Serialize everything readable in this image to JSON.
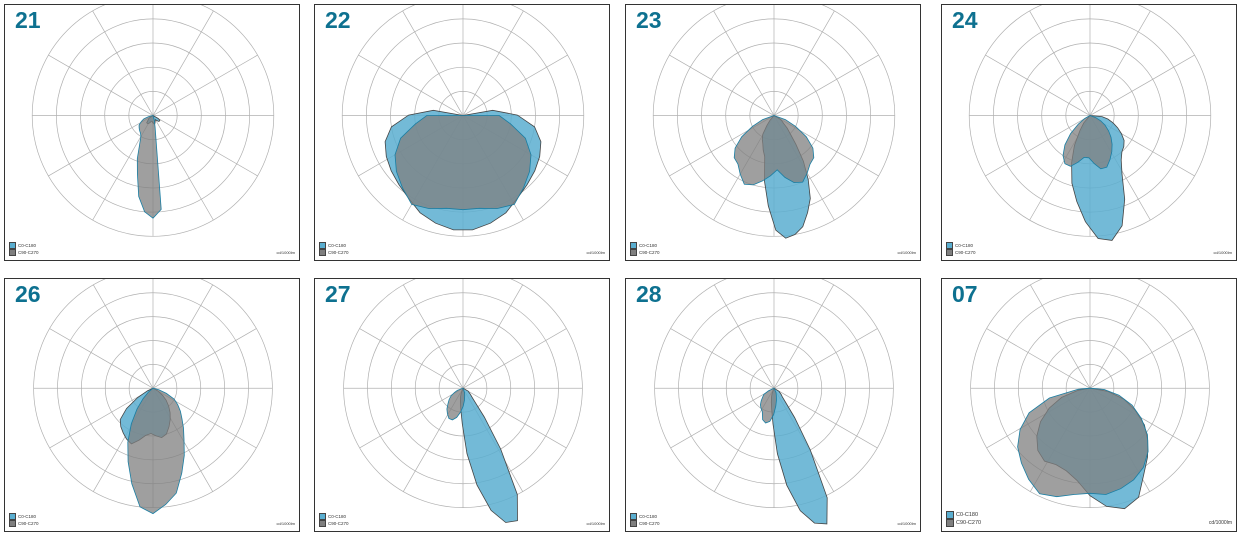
{
  "colors": {
    "c0_c180": "#5aaed0",
    "c90_c270": "#7f7f7f",
    "grid": "#b0b0b0",
    "number": "#0e7190"
  },
  "legend": {
    "c0_c180": "C0-C180",
    "c90_c270": "C90-C270"
  },
  "unit": "cd/1000lm",
  "chart_data": [
    {
      "type": "polar",
      "title": "21",
      "series": [
        {
          "name": "C0-C180",
          "r": [
            0.04,
            0.08,
            0.1,
            0.12,
            0.14,
            0.15,
            0.16,
            0.17,
            0.18,
            0.2,
            0.26,
            0.38,
            0.5,
            0.68,
            0.8,
            0.85,
            0.78,
            0.1,
            0.04
          ]
        },
        {
          "name": "C90-C270",
          "r": [
            0.04,
            0.05,
            0.06,
            0.08,
            0.08,
            0.08,
            0.07,
            0.06,
            0.05,
            0.05,
            0.05,
            0.06,
            0.06,
            0.07,
            0.07,
            0.06,
            0.05,
            0.04,
            0.04,
            0.05,
            0.06,
            0.07,
            0.07,
            0.07,
            0.05
          ]
        }
      ]
    },
    {
      "type": "polar",
      "title": "22",
      "series": [
        {
          "name": "C0-C180",
          "r": [
            0.3,
            0.4,
            0.55,
            0.65,
            0.72,
            0.78,
            0.85,
            0.82,
            0.78,
            0.78,
            0.78,
            0.82,
            0.85,
            0.78,
            0.72,
            0.65,
            0.55,
            0.4,
            0.3
          ]
        },
        {
          "name": "C90-C270",
          "r": [
            0.25,
            0.45,
            0.6,
            0.68,
            0.72,
            0.75,
            0.78,
            0.82,
            0.88,
            0.92,
            0.95,
            0.95,
            0.92,
            0.88,
            0.82,
            0.78,
            0.75,
            0.72,
            0.68,
            0.6,
            0.45,
            0.25
          ]
        }
      ]
    },
    {
      "type": "polar",
      "title": "23",
      "series": [
        {
          "name": "C0-C180",
          "r": [
            0.1,
            0.2,
            0.32,
            0.42,
            0.48,
            0.5,
            0.56,
            0.62,
            0.6,
            0.55,
            0.5,
            0.45,
            0.52,
            0.58,
            0.6,
            0.55,
            0.5,
            0.48,
            0.42,
            0.32,
            0.2,
            0.1
          ]
        },
        {
          "name": "C90-C270",
          "r": [
            0.05,
            0.1,
            0.18,
            0.22,
            0.25,
            0.3,
            0.35,
            0.55,
            0.75,
            0.95,
            1.02,
            1.0,
            0.95,
            0.85,
            0.75,
            0.6,
            0.45,
            0.3,
            0.2,
            0.15,
            0.1,
            0.08,
            0.05
          ]
        }
      ]
    },
    {
      "type": "polar",
      "title": "24",
      "series": [
        {
          "name": "C0-C180",
          "r": [
            0.05,
            0.12,
            0.22,
            0.32,
            0.4,
            0.45,
            0.45,
            0.4,
            0.35,
            0.35,
            0.4,
            0.45,
            0.45,
            0.4,
            0.35,
            0.3,
            0.25,
            0.2,
            0.15,
            0.1,
            0.05
          ]
        },
        {
          "name": "C90-C270",
          "r": [
            0.08,
            0.15,
            0.28,
            0.42,
            0.58,
            0.72,
            0.88,
            1.02,
            1.05,
            0.95,
            0.75,
            0.55,
            0.45,
            0.4,
            0.38,
            0.35,
            0.3,
            0.25,
            0.2,
            0.15,
            0.1
          ]
        }
      ]
    },
    {
      "type": "polar",
      "title": "26",
      "series": [
        {
          "name": "C0-C180",
          "r": [
            0.05,
            0.12,
            0.22,
            0.35,
            0.5,
            0.65,
            0.82,
            1.0,
            1.05,
            0.98,
            0.9,
            0.75,
            0.62,
            0.5,
            0.42,
            0.35,
            0.3,
            0.25,
            0.2,
            0.12,
            0.05
          ]
        },
        {
          "name": "C90-C270",
          "r": [
            0.05,
            0.15,
            0.28,
            0.38,
            0.42,
            0.45,
            0.48,
            0.5,
            0.45,
            0.4,
            0.38,
            0.4,
            0.42,
            0.4,
            0.35,
            0.3,
            0.25,
            0.2,
            0.15,
            0.1,
            0.05
          ]
        }
      ]
    },
    {
      "type": "polar",
      "title": "27",
      "series": [
        {
          "name": "C0-C180",
          "r": [
            0.05,
            0.08,
            0.12,
            0.15,
            0.18,
            0.22,
            0.25,
            0.28,
            0.28,
            0.25,
            0.2,
            0.15,
            0.1,
            0.06,
            0.04
          ]
        },
        {
          "name": "C90-C270",
          "r": [
            0.05,
            0.08,
            0.12,
            0.18,
            0.3,
            0.55,
            0.82,
            1.05,
            1.18,
            1.2,
            1.0,
            0.6,
            0.3,
            0.15,
            0.1,
            0.08,
            0.06,
            0.05
          ]
        }
      ]
    },
    {
      "type": "polar",
      "title": "28",
      "series": [
        {
          "name": "C0-C180",
          "r": [
            0.05,
            0.1,
            0.12,
            0.15,
            0.18,
            0.2,
            0.22,
            0.28,
            0.3,
            0.28,
            0.22,
            0.15,
            0.1,
            0.06,
            0.04
          ]
        },
        {
          "name": "C90-C270",
          "r": [
            0.05,
            0.08,
            0.12,
            0.18,
            0.3,
            0.55,
            0.82,
            1.05,
            1.18,
            1.22,
            1.02,
            0.6,
            0.3,
            0.15,
            0.1,
            0.08,
            0.06,
            0.05
          ]
        }
      ]
    },
    {
      "type": "polar",
      "title": "07",
      "legend": {
        "c0_c180": "C0-C180",
        "c90_c270": "C90-C270"
      },
      "series": [
        {
          "name": "C0-C180",
          "r": [
            0.1,
            0.35,
            0.55,
            0.68,
            0.78,
            0.85,
            0.92,
            0.98,
            0.95,
            0.9,
            0.88,
            0.9,
            0.88,
            0.85,
            0.8,
            0.72,
            0.62,
            0.5,
            0.38,
            0.25,
            0.12
          ]
        },
        {
          "name": "C90-C270",
          "r": [
            0.1,
            0.25,
            0.38,
            0.5,
            0.6,
            0.68,
            0.72,
            0.7,
            0.72,
            0.78,
            0.9,
            1.0,
            1.05,
            1.0,
            0.85,
            0.75,
            0.65,
            0.55,
            0.42,
            0.3,
            0.15
          ]
        }
      ]
    }
  ]
}
